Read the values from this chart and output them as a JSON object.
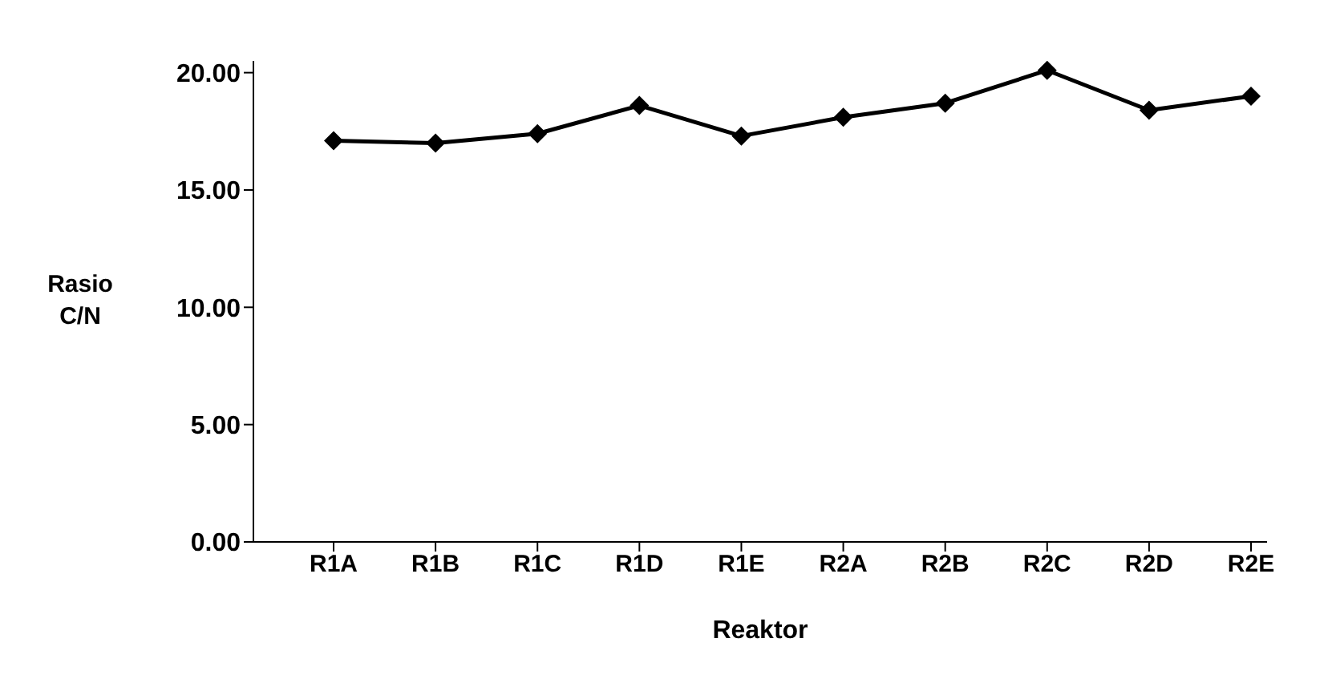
{
  "chart_data": {
    "type": "line",
    "xlabel": "Reaktor",
    "ylabel": "Rasio C/N",
    "categories": [
      "R1A",
      "R1B",
      "R1C",
      "R1D",
      "R1E",
      "R2A",
      "R2B",
      "R2C",
      "R2D",
      "R2E"
    ],
    "series": [
      {
        "color": "#000000",
        "values": [
          17.1,
          17.0,
          17.4,
          18.6,
          17.3,
          18.1,
          18.7,
          20.1,
          18.4,
          19.0
        ]
      }
    ],
    "ylim": [
      0,
      20.5
    ],
    "yticks": [
      {
        "value": 0,
        "label": "0.00"
      },
      {
        "value": 5,
        "label": "5.00"
      },
      {
        "value": 10,
        "label": "10.00"
      },
      {
        "value": 15,
        "label": "15.00"
      },
      {
        "value": 20,
        "label": "20.00"
      }
    ],
    "marker": "diamond",
    "grid": false,
    "legend": false
  }
}
